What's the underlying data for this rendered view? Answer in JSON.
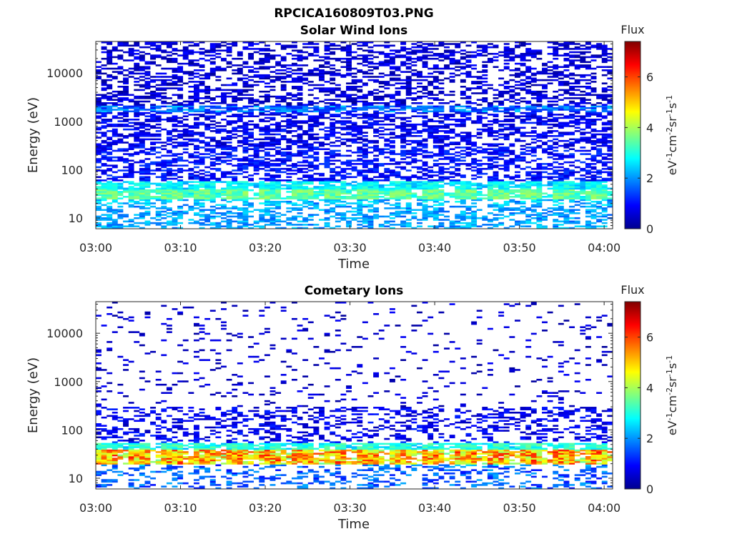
{
  "figure_title": "RPCICA160809T03.PNG",
  "chart_data": [
    {
      "type": "heatmap",
      "title": "Solar Wind Ions",
      "xlabel": "Time",
      "ylabel": "Energy (eV)",
      "xlim": [
        "03:00",
        "04:01"
      ],
      "ylim": [
        6,
        45000
      ],
      "yscale": "log",
      "xticks": [
        "03:00",
        "03:10",
        "03:20",
        "03:30",
        "03:40",
        "03:50",
        "04:00"
      ],
      "yticks": [
        "10",
        "100",
        "1000",
        "10000"
      ],
      "grid": false,
      "colorbar": {
        "label": "Flux",
        "units": "eV-1cm-2sr-1s-1",
        "ticks": [
          "0",
          "2",
          "4",
          "6"
        ],
        "range": [
          0,
          7.4
        ],
        "colormap": "jet"
      },
      "bands": [
        {
          "energy_range_eV": [
            6,
            25
          ],
          "flux_range": [
            1.6,
            2.6
          ],
          "fill": 0.55
        },
        {
          "energy_range_eV": [
            25,
            40
          ],
          "flux_range": [
            2.6,
            3.6
          ],
          "fill": 0.98
        },
        {
          "energy_range_eV": [
            40,
            60
          ],
          "flux_range": [
            2.0,
            2.8
          ],
          "fill": 0.9
        },
        {
          "energy_range_eV": [
            60,
            300
          ],
          "flux_range": [
            0.6,
            1.4
          ],
          "fill": 0.5
        },
        {
          "energy_range_eV": [
            300,
            1500
          ],
          "flux_range": [
            0.4,
            1.2
          ],
          "fill": 0.55
        },
        {
          "energy_range_eV": [
            1500,
            2200
          ],
          "flux_range": [
            1.0,
            2.4
          ],
          "fill": 0.75
        },
        {
          "energy_range_eV": [
            2200,
            45000
          ],
          "flux_range": [
            0.2,
            1.0
          ],
          "fill": 0.45
        }
      ]
    },
    {
      "type": "heatmap",
      "title": "Cometary Ions",
      "xlabel": "Time",
      "ylabel": "Energy (eV)",
      "xlim": [
        "03:00",
        "04:01"
      ],
      "ylim": [
        6,
        45000
      ],
      "yscale": "log",
      "xticks": [
        "03:00",
        "03:10",
        "03:20",
        "03:30",
        "03:40",
        "03:50",
        "04:00"
      ],
      "yticks": [
        "10",
        "100",
        "1000",
        "10000"
      ],
      "grid": false,
      "colorbar": {
        "label": "Flux",
        "units": "eV-1cm-2sr-1s-1",
        "ticks": [
          "0",
          "2",
          "4",
          "6"
        ],
        "range": [
          0,
          7.4
        ],
        "colormap": "jet"
      },
      "bands": [
        {
          "energy_range_eV": [
            6,
            20
          ],
          "flux_range": [
            1.0,
            2.2
          ],
          "fill": 0.35
        },
        {
          "energy_range_eV": [
            20,
            38
          ],
          "flux_range": [
            3.5,
            6.0
          ],
          "fill": 0.97
        },
        {
          "energy_range_eV": [
            38,
            55
          ],
          "flux_range": [
            2.2,
            3.2
          ],
          "fill": 0.95
        },
        {
          "energy_range_eV": [
            55,
            300
          ],
          "flux_range": [
            0.4,
            1.2
          ],
          "fill": 0.35
        },
        {
          "energy_range_eV": [
            300,
            45000
          ],
          "flux_range": [
            0.2,
            0.9
          ],
          "fill": 0.07
        }
      ]
    }
  ]
}
